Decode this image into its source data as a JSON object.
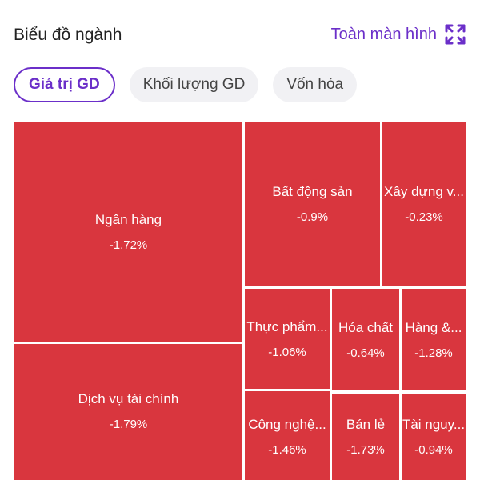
{
  "header": {
    "title": "Biểu đồ ngành",
    "fullscreen_label": "Toàn màn hình"
  },
  "tabs": [
    {
      "label": "Giá trị GD",
      "active": true
    },
    {
      "label": "Khối lượng GD",
      "active": false
    },
    {
      "label": "Vốn hóa",
      "active": false
    }
  ],
  "colors": {
    "accent": "#6b2fc9",
    "negative_tile": "#d9363e"
  },
  "sectors": [
    {
      "name": "Ngân hàng",
      "change": "-1.72%"
    },
    {
      "name": "Dịch vụ tài chính",
      "change": "-1.79%"
    },
    {
      "name": "Bất động sản",
      "change": "-0.9%"
    },
    {
      "name": "Xây dựng v...",
      "change": "-0.23%"
    },
    {
      "name": "Thực phẩm...",
      "change": "-1.06%"
    },
    {
      "name": "Hóa chất",
      "change": "-0.64%"
    },
    {
      "name": "Hàng &...",
      "change": "-1.28%"
    },
    {
      "name": "Công nghệ...",
      "change": "-1.46%"
    },
    {
      "name": "Bán lẻ",
      "change": "-1.73%"
    },
    {
      "name": "Tài nguy...",
      "change": "-0.94%"
    }
  ]
}
